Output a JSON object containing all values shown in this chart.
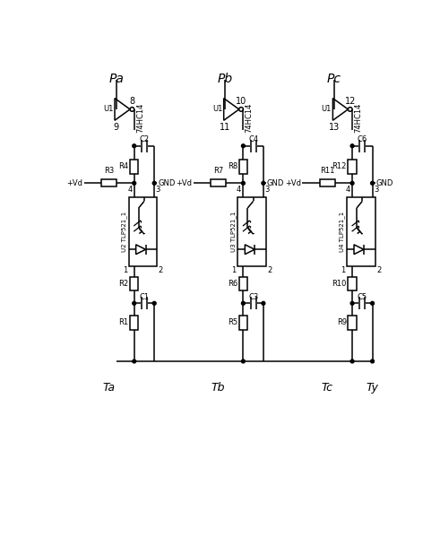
{
  "bg_color": "#ffffff",
  "line_color": "#000000",
  "phases": [
    "Pa",
    "Pb",
    "Pc"
  ],
  "bottom_labels": [
    "Ta",
    "Tb",
    "Tc",
    "Ty"
  ],
  "u_labels": [
    "U1",
    "U1",
    "U1"
  ],
  "ic_labels": [
    "74HC14",
    "74HC14",
    "74HC14"
  ],
  "pin_top": [
    "8",
    "10",
    "12"
  ],
  "pin_bot": [
    "9",
    "11",
    "13"
  ],
  "cap_top": [
    "C2",
    "C4",
    "C6"
  ],
  "res_top": [
    "R4",
    "R8",
    "R12"
  ],
  "res_mid": [
    "R3",
    "R7",
    "R11"
  ],
  "opto_labels": [
    "U2 TLP521_1",
    "U3 TLP521_1",
    "U4 TLP521_1"
  ],
  "res_bot1": [
    "R2",
    "R6",
    "R10"
  ],
  "cap_bot": [
    "C1",
    "C3",
    "C5"
  ],
  "res_bot2": [
    "R1",
    "R5",
    "R9"
  ],
  "CMX": [
    88,
    245,
    402
  ],
  "CRX": [
    143,
    300,
    457
  ],
  "CVD": [
    32,
    189,
    346
  ],
  "YPL": 12,
  "YWT": 22,
  "YINV": 65,
  "YN1": 95,
  "YCAP1": 118,
  "YR4C": 148,
  "YN2": 172,
  "YOBT": 192,
  "YOBH": 100,
  "YOBB": 292,
  "YGND": 172,
  "YR2C": 318,
  "YCAP2": 346,
  "YR1C": 374,
  "YBOT": 430,
  "YTL": 455
}
